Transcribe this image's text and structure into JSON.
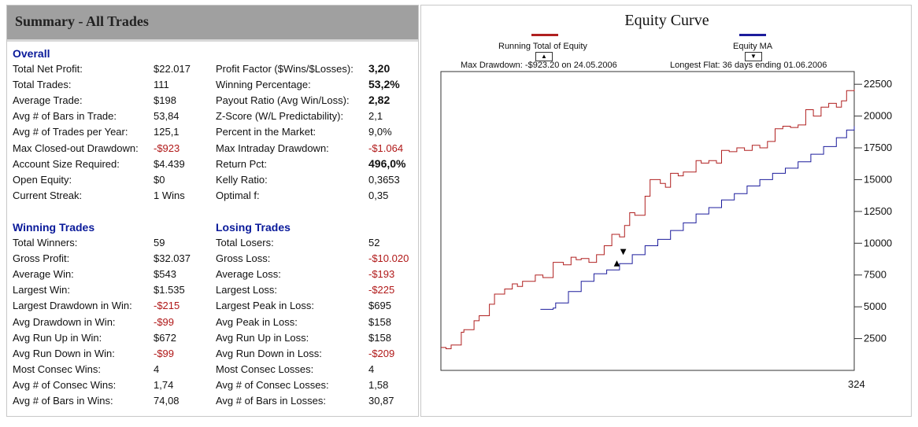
{
  "summary": {
    "title": "Summary - All Trades",
    "overall": {
      "heading": "Overall",
      "left": [
        {
          "label": "Total Net Profit:",
          "value": "$22.017",
          "neg": false
        },
        {
          "label": "Total Trades:",
          "value": "111",
          "neg": false
        },
        {
          "label": "Average Trade:",
          "value": "$198",
          "neg": false
        },
        {
          "label": "Avg # of Bars in Trade:",
          "value": "53,84",
          "neg": false
        },
        {
          "label": "Avg # of Trades per Year:",
          "value": "125,1",
          "neg": false
        },
        {
          "label": "Max Closed-out Drawdown:",
          "value": "-$923",
          "neg": true
        },
        {
          "label": "Account Size Required:",
          "value": "$4.439",
          "neg": false
        },
        {
          "label": "Open Equity:",
          "value": "$0",
          "neg": false
        },
        {
          "label": "Current Streak:",
          "value": "1 Wins",
          "neg": false
        }
      ],
      "right": [
        {
          "label": "Profit Factor ($Wins/$Losses):",
          "value": "3,20",
          "neg": false,
          "bold": true
        },
        {
          "label": "Winning Percentage:",
          "value": "53,2%",
          "neg": false,
          "bold": true
        },
        {
          "label": "Payout Ratio (Avg Win/Loss):",
          "value": "2,82",
          "neg": false,
          "bold": true
        },
        {
          "label": "Z-Score (W/L Predictability):",
          "value": "2,1",
          "neg": false
        },
        {
          "label": "Percent in the Market:",
          "value": "9,0%",
          "neg": false
        },
        {
          "label": "Max Intraday Drawdown:",
          "value": "-$1.064",
          "neg": true
        },
        {
          "label": "Return Pct:",
          "value": "496,0%",
          "neg": false,
          "bold": true
        },
        {
          "label": "Kelly Ratio:",
          "value": "0,3653",
          "neg": false
        },
        {
          "label": "Optimal f:",
          "value": "0,35",
          "neg": false
        }
      ]
    },
    "winning": {
      "heading": "Winning Trades",
      "rows": [
        {
          "label": "Total Winners:",
          "value": "59",
          "neg": false
        },
        {
          "label": "Gross Profit:",
          "value": "$32.037",
          "neg": false
        },
        {
          "label": "Average Win:",
          "value": "$543",
          "neg": false
        },
        {
          "label": "Largest Win:",
          "value": "$1.535",
          "neg": false
        },
        {
          "label": "Largest Drawdown in Win:",
          "value": "-$215",
          "neg": true
        },
        {
          "label": "Avg Drawdown in Win:",
          "value": "-$99",
          "neg": true
        },
        {
          "label": "Avg Run Up in Win:",
          "value": "$672",
          "neg": false
        },
        {
          "label": "Avg Run Down in Win:",
          "value": "-$99",
          "neg": true
        },
        {
          "label": "Most Consec Wins:",
          "value": "4",
          "neg": false
        },
        {
          "label": "Avg # of Consec Wins:",
          "value": "1,74",
          "neg": false
        },
        {
          "label": "Avg # of Bars in Wins:",
          "value": "74,08",
          "neg": false
        }
      ]
    },
    "losing": {
      "heading": "Losing Trades",
      "rows": [
        {
          "label": "Total Losers:",
          "value": "52",
          "neg": false
        },
        {
          "label": "Gross Loss:",
          "value": "-$10.020",
          "neg": true
        },
        {
          "label": "Average Loss:",
          "value": "-$193",
          "neg": true
        },
        {
          "label": "Largest Loss:",
          "value": "-$225",
          "neg": true
        },
        {
          "label": "Largest Peak in Loss:",
          "value": "$695",
          "neg": false
        },
        {
          "label": "Avg Peak in Loss:",
          "value": "$158",
          "neg": false
        },
        {
          "label": "Avg Run Up in Loss:",
          "value": "$158",
          "neg": false
        },
        {
          "label": "Avg Run Down in Loss:",
          "value": "-$209",
          "neg": true
        },
        {
          "label": "Most Consec Losses:",
          "value": "4",
          "neg": false
        },
        {
          "label": "Avg # of Consec Losses:",
          "value": "1,58",
          "neg": false
        },
        {
          "label": "Avg # of Bars in Losses:",
          "value": "30,87",
          "neg": false
        }
      ]
    }
  },
  "chart_data": {
    "type": "line",
    "title": "Equity Curve",
    "legend": {
      "placement": "top",
      "items": [
        {
          "name": "Running Total of Equity",
          "color": "#b02020",
          "button": "▲"
        },
        {
          "name": "Equity MA",
          "color": "#1c1c9c",
          "button": "▼"
        }
      ]
    },
    "max_drawdown_text": "Max Drawdown: -$923.20 on 24.05.2006",
    "longest_flat_text": "Longest Flat: 36 days ending 01.06.2006",
    "x_last_label": "324",
    "xlim": [
      0,
      324
    ],
    "ylim": [
      0,
      23500
    ],
    "y_ticks": [
      2500,
      5000,
      7500,
      10000,
      12500,
      15000,
      17500,
      20000,
      22500
    ],
    "y_tick_labels": [
      "2500",
      "5000",
      "7500",
      "10000",
      "12500",
      "15000",
      "17500",
      "20000",
      "22500"
    ],
    "y_axis_side": "right",
    "grid": false,
    "series": [
      {
        "name": "Running Total of Equity",
        "color": "#b02020",
        "x": [
          0,
          4,
          8,
          16,
          18,
          26,
          30,
          38,
          42,
          50,
          56,
          60,
          64,
          74,
          80,
          88,
          96,
          102,
          106,
          110,
          116,
          122,
          128,
          134,
          140,
          144,
          148,
          152,
          160,
          164,
          172,
          176,
          180,
          186,
          190,
          194,
          200,
          204,
          210,
          216,
          220,
          226,
          232,
          238,
          244,
          250,
          256,
          262,
          268,
          274,
          280,
          286,
          292,
          298,
          304,
          310,
          314,
          318,
          324
        ],
        "y": [
          1800,
          1700,
          2000,
          3000,
          3200,
          3900,
          4300,
          5200,
          6000,
          6400,
          6800,
          6600,
          7000,
          7500,
          7300,
          8500,
          8300,
          8900,
          8700,
          8800,
          8500,
          9100,
          9800,
          10700,
          10500,
          11400,
          12400,
          12200,
          13700,
          15000,
          14700,
          14400,
          15500,
          15300,
          15600,
          15600,
          16500,
          16300,
          16500,
          16300,
          17300,
          17200,
          17500,
          17300,
          17700,
          17500,
          18000,
          19000,
          19200,
          19100,
          19300,
          20500,
          20000,
          20700,
          21000,
          20700,
          21200,
          22000,
          22100
        ]
      },
      {
        "name": "Equity MA",
        "color": "#1c1c9c",
        "x": [
          78,
          88,
          90,
          100,
          110,
          120,
          130,
          140,
          150,
          160,
          170,
          180,
          190,
          200,
          210,
          220,
          230,
          240,
          250,
          260,
          270,
          280,
          290,
          300,
          310,
          318,
          324
        ],
        "y": [
          4800,
          4900,
          5300,
          6200,
          7000,
          7600,
          7900,
          8400,
          9100,
          9800,
          10300,
          11000,
          11600,
          12300,
          12800,
          13400,
          13900,
          14500,
          15000,
          15500,
          15900,
          16400,
          17000,
          17600,
          18300,
          18900,
          19200
        ]
      }
    ],
    "annotations": [
      {
        "symbol": "▲",
        "x": 138,
        "y": 8500
      },
      {
        "symbol": "▼",
        "x": 143,
        "y": 9400
      }
    ]
  }
}
